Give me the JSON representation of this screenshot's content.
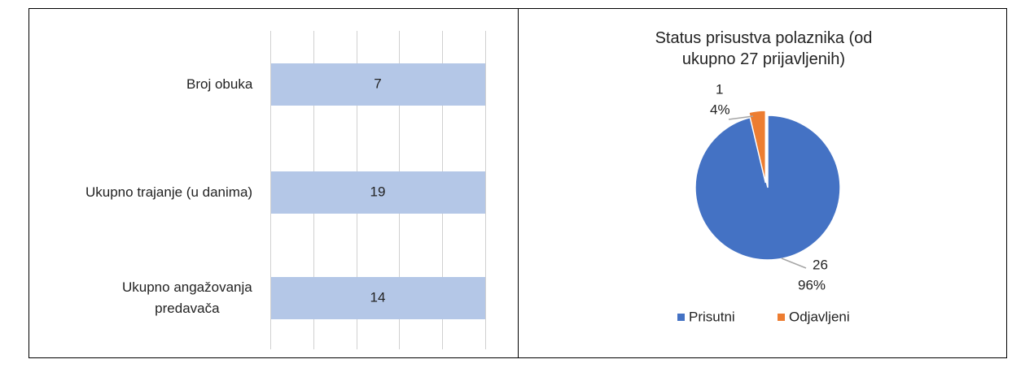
{
  "chart_data": [
    {
      "type": "bar_100",
      "categories": [
        "Broj obuka",
        "Ukupno trajanje (u danima)",
        "Ukupno angažovanja\npredavača"
      ],
      "values": [
        7,
        19,
        14
      ],
      "color": "#b4c7e7",
      "xlim": [
        0,
        100
      ],
      "xticks": [
        0,
        20,
        40,
        60,
        80,
        100
      ],
      "grid": true
    },
    {
      "type": "pie",
      "title": "Status prisustva polaznika (od ukupno 27 prijavljenih)",
      "categories": [
        "Prisutni",
        "Odjavljeni"
      ],
      "values": [
        26,
        1
      ],
      "percent_labels": [
        "96%",
        "4%"
      ],
      "colors": [
        "#4472c4",
        "#ed7d31"
      ],
      "legend": "bottom"
    }
  ]
}
